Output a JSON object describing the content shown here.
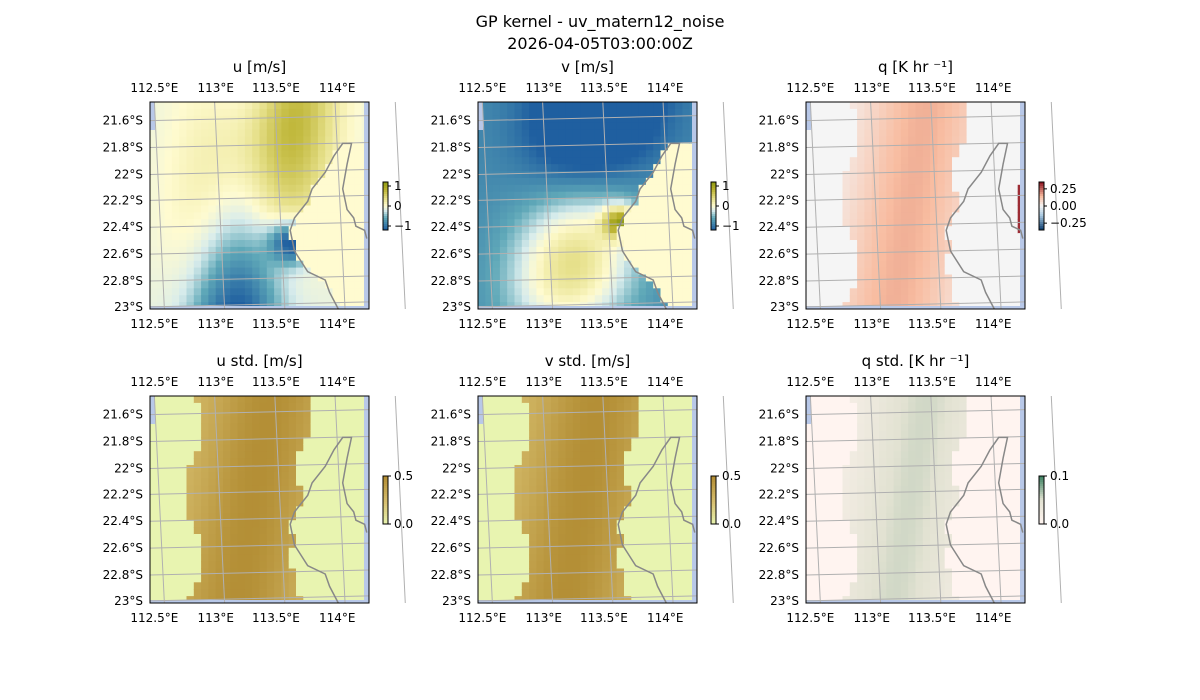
{
  "figure": {
    "title": "GP kernel - uv_matern12_noise",
    "subtitle": "2026-04-05T03:00:00Z"
  },
  "colors": {
    "land_mask": "#b8c8e8",
    "coastline": "#888888",
    "gridline": "#b0b0b0"
  },
  "chart_data": [
    {
      "type": "heatmap",
      "title": "u [m/s]",
      "lon_range": [
        112.5,
        114.22
      ],
      "lat_range": [
        -23.02,
        -21.48
      ],
      "x_ticks": [
        "112.5°E",
        "113°E",
        "113.5°E",
        "114°E"
      ],
      "y_ticks": [
        "21.6°S",
        "21.8°S",
        "22°S",
        "22.2°S",
        "22.4°S",
        "22.6°S",
        "22.8°S",
        "23°S"
      ],
      "colorbar": {
        "ticks": [
          "1",
          "0",
          "−1"
        ],
        "tick_values": [
          1,
          0,
          -1
        ],
        "range": [
          -1.2,
          1.2
        ],
        "colormap": "yellow-olive-teal-blue"
      },
      "grid": true
    },
    {
      "type": "heatmap",
      "title": "v [m/s]",
      "lon_range": [
        112.5,
        114.22
      ],
      "lat_range": [
        -23.02,
        -21.48
      ],
      "x_ticks": [
        "112.5°E",
        "113°E",
        "113.5°E",
        "114°E"
      ],
      "y_ticks": [
        "21.6°S",
        "21.8°S",
        "22°S",
        "22.2°S",
        "22.4°S",
        "22.6°S",
        "22.8°S",
        "23°S"
      ],
      "colorbar": {
        "ticks": [
          "1",
          "0",
          "−1"
        ],
        "tick_values": [
          1,
          0,
          -1
        ],
        "range": [
          -1.2,
          1.2
        ],
        "colormap": "yellow-olive-teal-blue"
      },
      "grid": true
    },
    {
      "type": "heatmap",
      "title": "q [K hr ⁻¹]",
      "lon_range": [
        112.5,
        114.22
      ],
      "lat_range": [
        -23.02,
        -21.48
      ],
      "x_ticks": [
        "112.5°E",
        "113°E",
        "113.5°E",
        "114°E"
      ],
      "y_ticks": [
        "21.6°S",
        "21.8°S",
        "22°S",
        "22.2°S",
        "22.4°S",
        "22.6°S",
        "22.8°S",
        "23°S"
      ],
      "colorbar": {
        "ticks": [
          "0.25",
          "0.00",
          "−0.25"
        ],
        "tick_values": [
          0.25,
          0,
          -0.25
        ],
        "range": [
          -0.35,
          0.35
        ],
        "colormap": "blue-white-red"
      },
      "grid": true
    },
    {
      "type": "heatmap",
      "title": "u std. [m/s]",
      "lon_range": [
        112.5,
        114.22
      ],
      "lat_range": [
        -23.02,
        -21.48
      ],
      "x_ticks": [
        "112.5°E",
        "113°E",
        "113.5°E",
        "114°E"
      ],
      "y_ticks": [
        "21.6°S",
        "21.8°S",
        "22°S",
        "22.2°S",
        "22.4°S",
        "22.6°S",
        "22.8°S",
        "23°S"
      ],
      "colorbar": {
        "ticks": [
          "0.5",
          "0.0"
        ],
        "tick_values": [
          0.5,
          0
        ],
        "range": [
          0,
          0.5
        ],
        "colormap": "yellow-brown"
      },
      "grid": true
    },
    {
      "type": "heatmap",
      "title": "v std. [m/s]",
      "lon_range": [
        112.5,
        114.22
      ],
      "lat_range": [
        -23.02,
        -21.48
      ],
      "x_ticks": [
        "112.5°E",
        "113°E",
        "113.5°E",
        "114°E"
      ],
      "y_ticks": [
        "21.6°S",
        "21.8°S",
        "22°S",
        "22.2°S",
        "22.4°S",
        "22.6°S",
        "22.8°S",
        "23°S"
      ],
      "colorbar": {
        "ticks": [
          "0.5",
          "0.0"
        ],
        "tick_values": [
          0.5,
          0
        ],
        "range": [
          0,
          0.5
        ],
        "colormap": "yellow-brown"
      },
      "grid": true
    },
    {
      "type": "heatmap",
      "title": "q std. [K hr ⁻¹]",
      "lon_range": [
        112.5,
        114.22
      ],
      "lat_range": [
        -23.02,
        -21.48
      ],
      "x_ticks": [
        "112.5°E",
        "113°E",
        "113.5°E",
        "114°E"
      ],
      "y_ticks": [
        "21.6°S",
        "21.8°S",
        "22°S",
        "22.2°S",
        "22.4°S",
        "22.6°S",
        "22.8°S",
        "23°S"
      ],
      "colorbar": {
        "ticks": [
          "0.1",
          "0.0"
        ],
        "tick_values": [
          0.1,
          0
        ],
        "range": [
          0,
          0.1
        ],
        "colormap": "pink-grey-green"
      },
      "grid": true
    }
  ]
}
